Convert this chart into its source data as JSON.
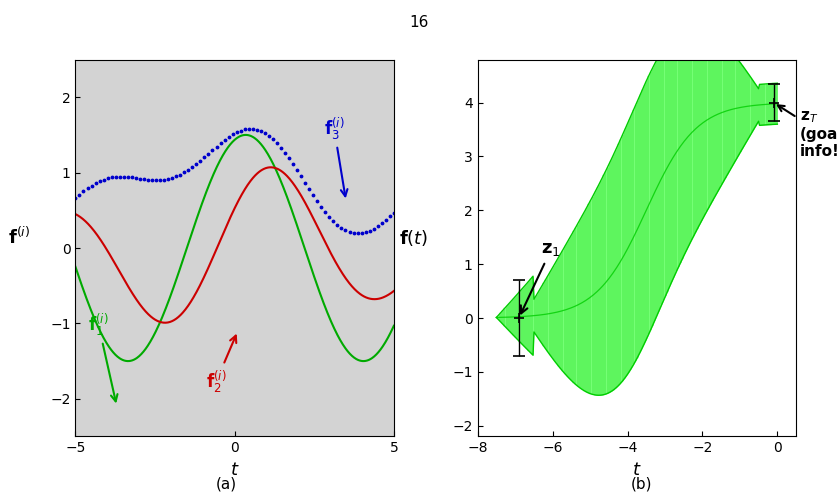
{
  "fig_width": 8.38,
  "fig_height": 4.96,
  "page_number": "16",
  "subplot_a": {
    "xlim": [
      -5,
      5
    ],
    "ylim": [
      -2.5,
      2.5
    ],
    "xlabel": "t",
    "bg_color": "#d3d3d3",
    "f1_color": "#00aa00",
    "f2_color": "#cc0000",
    "f3_color": "#0000cc"
  },
  "subplot_b": {
    "xlim": [
      -8,
      0.5
    ],
    "ylim": [
      -2.2,
      4.8
    ],
    "xlabel": "t",
    "fill_color": "#66ff66",
    "line_color": "#00cc00"
  }
}
